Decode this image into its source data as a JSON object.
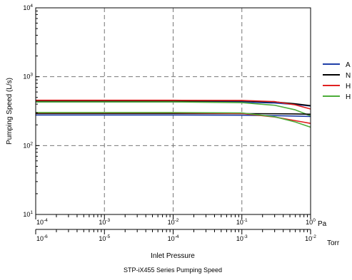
{
  "chart_data": {
    "type": "line",
    "title": "STP-iX455 Series Pumping Speed",
    "xlabel": "Inlet Pressure",
    "ylabel": "Pumping Speed (L/s)",
    "x_scale": "log",
    "y_scale": "log",
    "xlim": [
      0.0001,
      1
    ],
    "ylim": [
      10,
      10000
    ],
    "x_unit": "Pa",
    "x2_unit": "Torr",
    "x2lim": [
      1e-06,
      0.01
    ],
    "grid": true,
    "x_ticks": [
      {
        "mant": "10",
        "exp": "-4"
      },
      {
        "mant": "10",
        "exp": "-3"
      },
      {
        "mant": "10",
        "exp": "-2"
      },
      {
        "mant": "10",
        "exp": "-1"
      },
      {
        "mant": "10",
        "exp": "0"
      }
    ],
    "x2_ticks": [
      {
        "mant": "10",
        "exp": "-6"
      },
      {
        "mant": "10",
        "exp": "-5"
      },
      {
        "mant": "10",
        "exp": "-4"
      },
      {
        "mant": "10",
        "exp": "-3"
      },
      {
        "mant": "10",
        "exp": "-2"
      }
    ],
    "y_ticks": [
      {
        "mant": "10",
        "exp": "1"
      },
      {
        "mant": "10",
        "exp": "2"
      },
      {
        "mant": "10",
        "exp": "3"
      },
      {
        "mant": "10",
        "exp": "4"
      }
    ],
    "legend_position": "right",
    "series": [
      {
        "name": "A",
        "color": "#1f3fa8",
        "x": [
          0.0001,
          0.001,
          0.01,
          0.1,
          0.3,
          0.6,
          1
        ],
        "y": [
          430,
          430,
          430,
          428,
          415,
          395,
          375
        ]
      },
      {
        "name": "N",
        "color": "#000000",
        "x": [
          0.0001,
          0.001,
          0.01,
          0.1,
          0.3,
          0.6,
          1
        ],
        "y": [
          445,
          445,
          445,
          445,
          430,
          405,
          380
        ]
      },
      {
        "name": "H",
        "color": "#e02020",
        "x": [
          0.0001,
          0.001,
          0.01,
          0.1,
          0.3,
          0.6,
          1
        ],
        "y": [
          455,
          455,
          455,
          453,
          435,
          390,
          340
        ]
      },
      {
        "name": "H",
        "color": "#4cad3a",
        "x": [
          0.0001,
          0.001,
          0.01,
          0.1,
          0.3,
          0.6,
          1
        ],
        "y": [
          430,
          430,
          430,
          420,
          385,
          330,
          270
        ]
      },
      {
        "color": "#1f3fa8",
        "x": [
          0.0001,
          0.001,
          0.01,
          0.1,
          0.3,
          0.6,
          1
        ],
        "y": [
          278,
          278,
          278,
          276,
          272,
          268,
          265
        ]
      },
      {
        "color": "#000000",
        "x": [
          0.0001,
          0.001,
          0.01,
          0.1,
          0.3,
          0.6,
          1
        ],
        "y": [
          292,
          292,
          292,
          291,
          290,
          288,
          285
        ]
      },
      {
        "color": "#e02020",
        "x": [
          0.0001,
          0.001,
          0.01,
          0.1,
          0.3,
          0.6,
          1
        ],
        "y": [
          298,
          298,
          298,
          292,
          260,
          230,
          210
        ]
      },
      {
        "color": "#4cad3a",
        "x": [
          0.0001,
          0.001,
          0.01,
          0.1,
          0.3,
          0.6,
          1
        ],
        "y": [
          302,
          302,
          302,
          298,
          262,
          220,
          185
        ]
      }
    ]
  }
}
